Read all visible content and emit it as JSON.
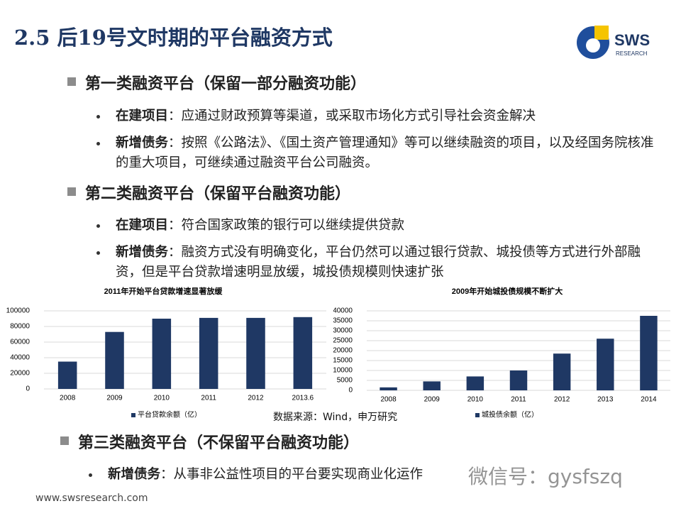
{
  "title": "2.5 后19号文时期的平台融资方式",
  "logo": {
    "name": "SWS",
    "sub": "RESEARCH"
  },
  "sections": [
    {
      "heading": "第一类融资平台（保留一部分融资功能）",
      "items": [
        {
          "label": "在建项目",
          "text": "：应通过财政预算等渠道，或采取市场化方式引导社会资金解决"
        },
        {
          "label": "新增债务",
          "text": "：按照《公路法》、《国土资产管理通知》等可以继续融资的项目，以及经国务院核准的重大项目，可继续通过融资平台公司融资。"
        }
      ]
    },
    {
      "heading": "第二类融资平台（保留平台融资功能）",
      "items": [
        {
          "label": "在建项目",
          "text": "：符合国家政策的银行可以继续提供贷款"
        },
        {
          "label": "新增债务",
          "text": "：融资方式没有明确变化，平台仍然可以通过银行贷款、城投债等方式进行外部融资，但是平台贷款增速明显放缓，城投债规模则快速扩张"
        }
      ]
    },
    {
      "heading": "第三类融资平台（不保留平台融资功能）",
      "items": [
        {
          "label": "新增债务",
          "text": "：从事非公益性项目的平台要实现商业化运作"
        }
      ]
    }
  ],
  "source": "数据来源：Wind，申万研究",
  "footer": "www.swsresearch.com",
  "watermark": "微信号：gysfszq",
  "chart_data": [
    {
      "type": "bar",
      "title": "2011年开始平台贷款增速显著放缓",
      "categories": [
        "2008",
        "2009",
        "2010",
        "2011",
        "2012",
        "2013.6"
      ],
      "series": [
        {
          "name": "平台贷款余额（亿）",
          "color": "#1f3864",
          "values": [
            35000,
            73000,
            90000,
            91000,
            91000,
            92000
          ]
        }
      ],
      "ylim": [
        0,
        100000
      ],
      "yticks": [
        0,
        20000,
        40000,
        60000,
        80000,
        100000
      ],
      "grid": true
    },
    {
      "type": "bar",
      "title": "2009年开始城投债规模不断扩大",
      "categories": [
        "2008",
        "2009",
        "2010",
        "2011",
        "2012",
        "2013",
        "2014"
      ],
      "series": [
        {
          "name": "城投债余额（亿）",
          "color": "#1f3864",
          "values": [
            1500,
            4500,
            7000,
            10000,
            18500,
            26000,
            37500
          ]
        }
      ],
      "ylim": [
        0,
        40000
      ],
      "yticks": [
        0,
        5000,
        10000,
        15000,
        20000,
        25000,
        30000,
        35000,
        40000
      ],
      "grid": true
    }
  ]
}
